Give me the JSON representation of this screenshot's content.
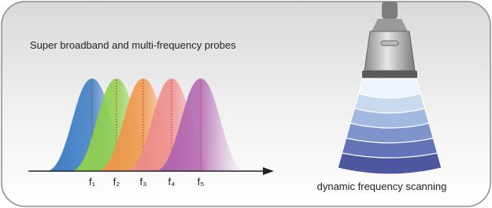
{
  "title": "Super broadband and multi-frequency probes",
  "frequency_labels": [
    "f₁",
    "f₂",
    "f₃",
    "f₄",
    "f₅"
  ],
  "caption": "dynamic frequency scanning"
}
